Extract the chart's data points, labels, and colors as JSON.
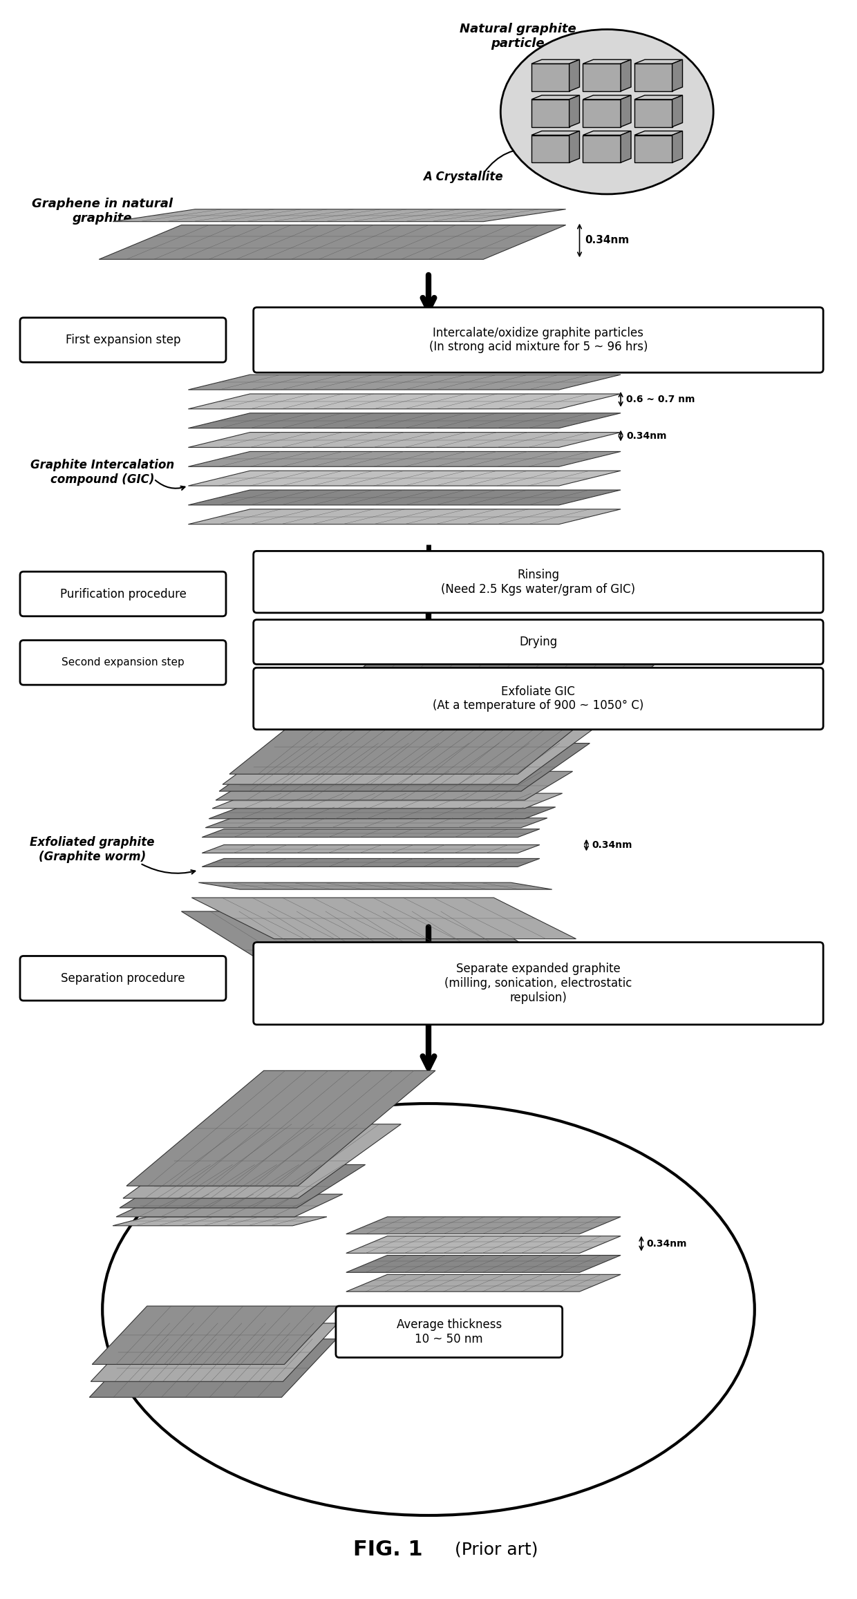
{
  "background_color": "#ffffff",
  "fig_width": 12.4,
  "fig_height": 23.14,
  "title_bold": "FIG. 1",
  "title_normal": " (Prior art)",
  "natural_graphite_label": "Natural graphite\nparticle",
  "crystallite_label": "A Crystallite",
  "graphene_label": "Graphene in natural\ngraphite",
  "dim_034_top": "0.34nm",
  "first_expansion_text": "First expansion step",
  "intercalate_text": "Intercalate/oxidize graphite particles\n(In strong acid mixture for 5 ~ 96 hrs)",
  "gic_label": "Graphite Intercalation\ncompound (GIC)",
  "dim_067": "0.6 ~ 0.7 nm",
  "dim_034_gic": "0.34nm",
  "purification_text": "Purification procedure",
  "rinsing_text": "Rinsing\n(Need 2.5 Kgs water/gram of GIC)",
  "drying_text": "Drying",
  "second_expansion_text": "Second expansion step",
  "exfoliate_text": "Exfoliate GIC\n(At a temperature of 900 ~ 1050° C)",
  "exfoliated_label": "Exfoliated graphite\n(Graphite worm)",
  "dim_034_exf": "0.34nm",
  "separation_text": "Separation procedure",
  "separate_text": "Separate expanded graphite\n(milling, sonication, electrostatic\nrepulsion)",
  "avg_thickness_text": "Average thickness\n10 ~ 50 nm",
  "dim_034_final": "0.34nm",
  "sheet_color_light": "#aaaaaa",
  "sheet_color_mid": "#888888",
  "sheet_color_dark": "#666666",
  "sheet_color_top": "#bbbbbb",
  "crystallite_fill": "#cccccc",
  "arrow_color": "#000000"
}
